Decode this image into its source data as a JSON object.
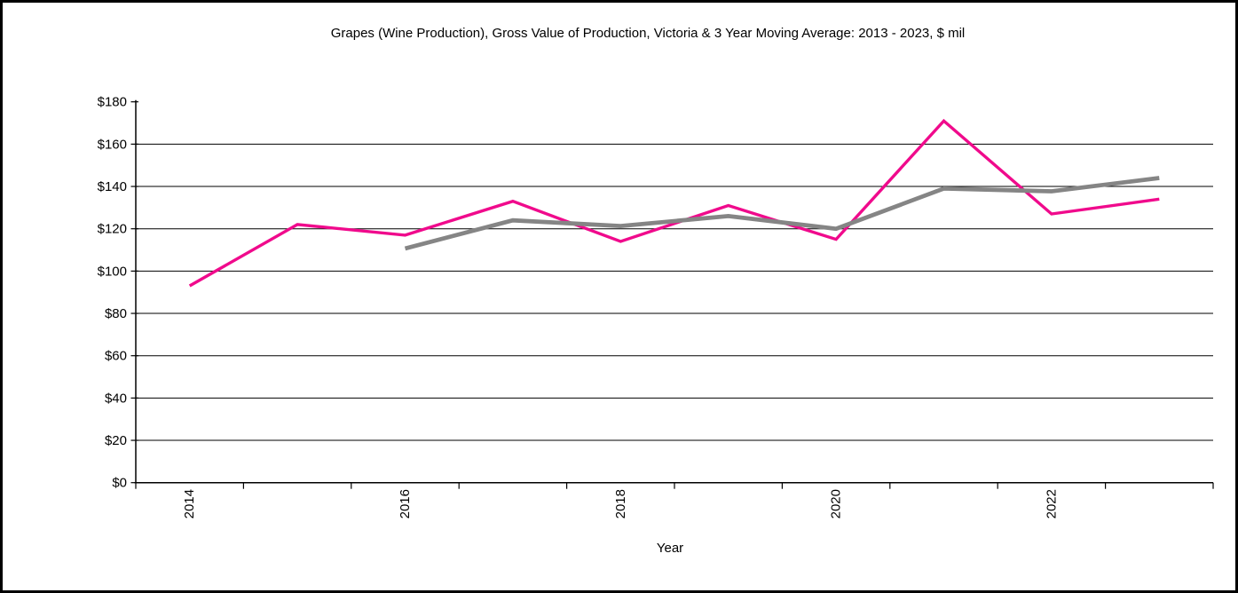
{
  "window": {
    "background_color": "#FFFFFF",
    "frame_border_color": "#000000"
  },
  "chart_data": {
    "type": "line",
    "title": "Grapes (Wine Production), Gross Value of Production, Victoria & 3 Year Moving Average: 2013 - 2023, $ mil",
    "xlabel": "Year",
    "ylabel": "",
    "grid": "horizontal",
    "legend_position": "none",
    "axis_color": "#000000",
    "gridline_color": "#000000",
    "x_categories": [
      "2014",
      "2015",
      "2016",
      "2017",
      "2018",
      "2019",
      "2020",
      "2021",
      "2022",
      "2023"
    ],
    "x_tick_labels": [
      "2014",
      "2016",
      "2018",
      "2020",
      "2022"
    ],
    "y_axis": {
      "min": 0,
      "max": 180,
      "step": 20,
      "tick_prefix": "$",
      "tick_labels": [
        "$0",
        "$20",
        "$40",
        "$60",
        "$80",
        "$100",
        "$120",
        "$140",
        "$160",
        "$180"
      ]
    },
    "series": [
      {
        "name": "Victoria",
        "color": "#F00A8C",
        "stroke_width": 3.4,
        "x": [
          "2014",
          "2015",
          "2016",
          "2017",
          "2018",
          "2019",
          "2020",
          "2021",
          "2022",
          "2023"
        ],
        "values": [
          93,
          122,
          117,
          133,
          114,
          131,
          115,
          171,
          127,
          134
        ]
      },
      {
        "name": "3 Year Moving Average",
        "color": "#858585",
        "stroke_width": 4.8,
        "x": [
          "2016",
          "2017",
          "2018",
          "2019",
          "2020",
          "2021",
          "2022",
          "2023"
        ],
        "values": [
          110.7,
          124,
          121.3,
          126,
          120,
          139,
          137.7,
          144
        ]
      }
    ]
  }
}
